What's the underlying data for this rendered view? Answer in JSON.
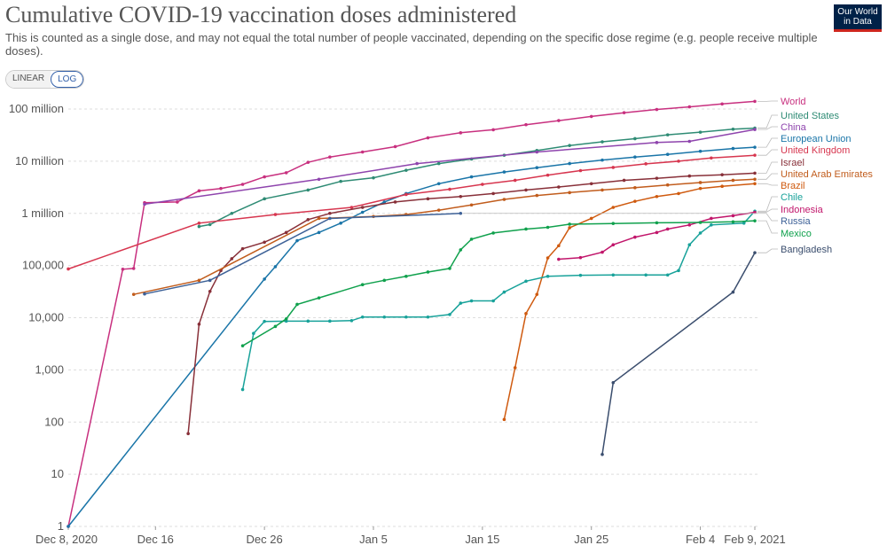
{
  "header": {
    "title": "Cumulative COVID-19 vaccination doses administered",
    "subtitle": "This is counted as a single dose, and may not equal the total number of people vaccinated, depending on the specific dose regime (e.g. people receive multiple doses).",
    "logo_line1": "Our World",
    "logo_line2": "in Data"
  },
  "scale_toggle": {
    "linear_label": "LINEAR",
    "log_label": "LOG",
    "selected": "LOG"
  },
  "chart_data": {
    "type": "line",
    "title": "Cumulative COVID-19 vaccination doses administered",
    "y_scale": "log",
    "ylim": [
      1,
      150000000
    ],
    "xlim": [
      "2020-12-08",
      "2021-02-09"
    ],
    "grid": true,
    "legend": "right end labels",
    "y_ticks": [
      {
        "value": 1,
        "label": "1"
      },
      {
        "value": 10,
        "label": "10"
      },
      {
        "value": 100,
        "label": "100"
      },
      {
        "value": 1000,
        "label": "1,000"
      },
      {
        "value": 10000,
        "label": "10,000"
      },
      {
        "value": 100000,
        "label": "100,000"
      },
      {
        "value": 1000000,
        "label": "1 million"
      },
      {
        "value": 10000000,
        "label": "10 million"
      },
      {
        "value": 100000000,
        "label": "100 million"
      }
    ],
    "x_ticks": [
      {
        "date": "2020-12-08",
        "label": "Dec 8, 2020"
      },
      {
        "date": "2020-12-16",
        "label": "Dec 16"
      },
      {
        "date": "2020-12-26",
        "label": "Dec 26"
      },
      {
        "date": "2021-01-05",
        "label": "Jan 5"
      },
      {
        "date": "2021-01-15",
        "label": "Jan 15"
      },
      {
        "date": "2021-01-25",
        "label": "Jan 25"
      },
      {
        "date": "2021-02-04",
        "label": "Feb 4"
      },
      {
        "date": "2021-02-09",
        "label": "Feb 9, 2021"
      }
    ],
    "series": [
      {
        "name": "World",
        "color": "#c8307f",
        "points": [
          [
            "2020-12-08",
            1
          ],
          [
            "2020-12-13",
            85000
          ],
          [
            "2020-12-14",
            88000
          ],
          [
            "2020-12-15",
            1600000
          ],
          [
            "2020-12-18",
            1650000
          ],
          [
            "2020-12-20",
            2700000
          ],
          [
            "2020-12-22",
            3000000
          ],
          [
            "2020-12-24",
            3600000
          ],
          [
            "2020-12-26",
            5000000
          ],
          [
            "2020-12-28",
            6000000
          ],
          [
            "2020-12-30",
            9500000
          ],
          [
            "2021-01-01",
            12000000
          ],
          [
            "2021-01-04",
            15000000
          ],
          [
            "2021-01-07",
            19000000
          ],
          [
            "2021-01-10",
            28000000
          ],
          [
            "2021-01-13",
            35000000
          ],
          [
            "2021-01-16",
            40000000
          ],
          [
            "2021-01-19",
            50000000
          ],
          [
            "2021-01-22",
            60000000
          ],
          [
            "2021-01-25",
            72000000
          ],
          [
            "2021-01-28",
            85000000
          ],
          [
            "2021-01-31",
            98000000
          ],
          [
            "2021-02-03",
            110000000
          ],
          [
            "2021-02-06",
            125000000
          ],
          [
            "2021-02-09",
            140000000
          ]
        ]
      },
      {
        "name": "United States",
        "color": "#2e8b74",
        "points": [
          [
            "2020-12-20",
            560000
          ],
          [
            "2020-12-21",
            610000
          ],
          [
            "2020-12-23",
            1000000
          ],
          [
            "2020-12-26",
            1900000
          ],
          [
            "2020-12-30",
            2800000
          ],
          [
            "2021-01-02",
            4100000
          ],
          [
            "2021-01-05",
            4800000
          ],
          [
            "2021-01-08",
            6700000
          ],
          [
            "2021-01-11",
            9000000
          ],
          [
            "2021-01-14",
            11000000
          ],
          [
            "2021-01-17",
            13000000
          ],
          [
            "2021-01-20",
            16000000
          ],
          [
            "2021-01-23",
            20000000
          ],
          [
            "2021-01-26",
            23500000
          ],
          [
            "2021-01-29",
            27000000
          ],
          [
            "2021-02-01",
            32000000
          ],
          [
            "2021-02-04",
            36000000
          ],
          [
            "2021-02-07",
            41000000
          ],
          [
            "2021-02-09",
            43000000
          ]
        ]
      },
      {
        "name": "China",
        "color": "#8e44ad",
        "points": [
          [
            "2020-12-15",
            1500000
          ],
          [
            "2020-12-31",
            4500000
          ],
          [
            "2021-01-09",
            9000000
          ],
          [
            "2021-01-20",
            15000000
          ],
          [
            "2021-01-31",
            22770000
          ],
          [
            "2021-02-03",
            24000000
          ],
          [
            "2021-02-09",
            40520000
          ]
        ]
      },
      {
        "name": "European Union",
        "color": "#1a75a8",
        "points": [
          [
            "2020-12-08",
            1
          ],
          [
            "2020-12-26",
            55000
          ],
          [
            "2020-12-27",
            95000
          ],
          [
            "2020-12-29",
            300000
          ],
          [
            "2020-12-31",
            430000
          ],
          [
            "2021-01-02",
            650000
          ],
          [
            "2021-01-04",
            1050000
          ],
          [
            "2021-01-06",
            1650000
          ],
          [
            "2021-01-08",
            2400000
          ],
          [
            "2021-01-11",
            3700000
          ],
          [
            "2021-01-14",
            5000000
          ],
          [
            "2021-01-17",
            6200000
          ],
          [
            "2021-01-20",
            7500000
          ],
          [
            "2021-01-23",
            9000000
          ],
          [
            "2021-01-26",
            10500000
          ],
          [
            "2021-01-29",
            12000000
          ],
          [
            "2021-02-01",
            13500000
          ],
          [
            "2021-02-04",
            15500000
          ],
          [
            "2021-02-07",
            17500000
          ],
          [
            "2021-02-09",
            18500000
          ]
        ]
      },
      {
        "name": "United Kingdom",
        "color": "#d7364f",
        "points": [
          [
            "2020-12-08",
            86000
          ],
          [
            "2020-12-20",
            650000
          ],
          [
            "2020-12-27",
            950000
          ],
          [
            "2021-01-03",
            1300000
          ],
          [
            "2021-01-08",
            2300000
          ],
          [
            "2021-01-12",
            2900000
          ],
          [
            "2021-01-15",
            3600000
          ],
          [
            "2021-01-18",
            4300000
          ],
          [
            "2021-01-21",
            5400000
          ],
          [
            "2021-01-24",
            6600000
          ],
          [
            "2021-01-27",
            7600000
          ],
          [
            "2021-01-30",
            8900000
          ],
          [
            "2021-02-02",
            10000000
          ],
          [
            "2021-02-05",
            11500000
          ],
          [
            "2021-02-09",
            13000000
          ]
        ]
      },
      {
        "name": "Israel",
        "color": "#883039",
        "points": [
          [
            "2020-12-19",
            60
          ],
          [
            "2020-12-20",
            7500
          ],
          [
            "2020-12-21",
            32000
          ],
          [
            "2020-12-22",
            80000
          ],
          [
            "2020-12-23",
            135000
          ],
          [
            "2020-12-24",
            210000
          ],
          [
            "2020-12-26",
            280000
          ],
          [
            "2020-12-28",
            430000
          ],
          [
            "2020-12-30",
            760000
          ],
          [
            "2021-01-01",
            1000000
          ],
          [
            "2021-01-04",
            1300000
          ],
          [
            "2021-01-07",
            1650000
          ],
          [
            "2021-01-10",
            1900000
          ],
          [
            "2021-01-13",
            2100000
          ],
          [
            "2021-01-16",
            2400000
          ],
          [
            "2021-01-19",
            2800000
          ],
          [
            "2021-01-22",
            3200000
          ],
          [
            "2021-01-25",
            3700000
          ],
          [
            "2021-01-28",
            4300000
          ],
          [
            "2021-01-31",
            4700000
          ],
          [
            "2021-02-03",
            5200000
          ],
          [
            "2021-02-06",
            5500000
          ],
          [
            "2021-02-09",
            5900000
          ]
        ]
      },
      {
        "name": "United Arab Emirates",
        "color": "#c15c1c",
        "points": [
          [
            "2020-12-14",
            28000
          ],
          [
            "2020-12-20",
            52000
          ],
          [
            "2020-12-31",
            800000
          ],
          [
            "2021-01-05",
            870000
          ],
          [
            "2021-01-08",
            950000
          ],
          [
            "2021-01-11",
            1150000
          ],
          [
            "2021-01-14",
            1450000
          ],
          [
            "2021-01-17",
            1850000
          ],
          [
            "2021-01-20",
            2200000
          ],
          [
            "2021-01-23",
            2500000
          ],
          [
            "2021-01-26",
            2800000
          ],
          [
            "2021-01-29",
            3100000
          ],
          [
            "2021-02-01",
            3500000
          ],
          [
            "2021-02-04",
            3900000
          ],
          [
            "2021-02-07",
            4300000
          ],
          [
            "2021-02-09",
            4500000
          ]
        ]
      },
      {
        "name": "Brazil",
        "color": "#cf5a0f",
        "points": [
          [
            "2021-01-17",
            112
          ],
          [
            "2021-01-18",
            1100
          ],
          [
            "2021-01-19",
            12000
          ],
          [
            "2021-01-20",
            28000
          ],
          [
            "2021-01-21",
            140000
          ],
          [
            "2021-01-22",
            240000
          ],
          [
            "2021-01-23",
            530000
          ],
          [
            "2021-01-25",
            800000
          ],
          [
            "2021-01-27",
            1300000
          ],
          [
            "2021-01-29",
            1700000
          ],
          [
            "2021-01-31",
            2100000
          ],
          [
            "2021-02-02",
            2400000
          ],
          [
            "2021-02-04",
            3000000
          ],
          [
            "2021-02-06",
            3300000
          ],
          [
            "2021-02-09",
            3700000
          ]
        ]
      },
      {
        "name": "Chile",
        "color": "#18a29a",
        "points": [
          [
            "2020-12-24",
            420
          ],
          [
            "2020-12-25",
            5000
          ],
          [
            "2020-12-26",
            8500
          ],
          [
            "2020-12-28",
            8600
          ],
          [
            "2020-12-30",
            8600
          ],
          [
            "2021-01-01",
            8600
          ],
          [
            "2021-01-03",
            8800
          ],
          [
            "2021-01-04",
            10300
          ],
          [
            "2021-01-06",
            10300
          ],
          [
            "2021-01-08",
            10300
          ],
          [
            "2021-01-10",
            10300
          ],
          [
            "2021-01-12",
            11500
          ],
          [
            "2021-01-13",
            19000
          ],
          [
            "2021-01-14",
            21000
          ],
          [
            "2021-01-16",
            21000
          ],
          [
            "2021-01-17",
            31000
          ],
          [
            "2021-01-19",
            50000
          ],
          [
            "2021-01-21",
            62000
          ],
          [
            "2021-01-24",
            65000
          ],
          [
            "2021-01-27",
            66000
          ],
          [
            "2021-01-30",
            66000
          ],
          [
            "2021-02-01",
            66000
          ],
          [
            "2021-02-02",
            80000
          ],
          [
            "2021-02-03",
            250000
          ],
          [
            "2021-02-04",
            420000
          ],
          [
            "2021-02-05",
            600000
          ],
          [
            "2021-02-08",
            650000
          ],
          [
            "2021-02-09",
            1100000
          ]
        ]
      },
      {
        "name": "Indonesia",
        "color": "#c1166b",
        "points": [
          [
            "2021-01-22",
            132000
          ],
          [
            "2021-01-24",
            142000
          ],
          [
            "2021-01-26",
            180000
          ],
          [
            "2021-01-27",
            250000
          ],
          [
            "2021-01-29",
            350000
          ],
          [
            "2021-01-31",
            430000
          ],
          [
            "2021-02-01",
            500000
          ],
          [
            "2021-02-03",
            600000
          ],
          [
            "2021-02-05",
            800000
          ],
          [
            "2021-02-07",
            900000
          ],
          [
            "2021-02-09",
            1050000
          ]
        ]
      },
      {
        "name": "Russia",
        "color": "#3d6197",
        "points": [
          [
            "2020-12-15",
            28500
          ],
          [
            "2020-12-21",
            52000
          ],
          [
            "2021-01-01",
            800000
          ],
          [
            "2021-01-13",
            1000000
          ]
        ]
      },
      {
        "name": "Mexico",
        "color": "#10a14d",
        "points": [
          [
            "2020-12-24",
            2900
          ],
          [
            "2020-12-27",
            6800
          ],
          [
            "2020-12-28",
            9500
          ],
          [
            "2020-12-29",
            18000
          ],
          [
            "2020-12-31",
            24000
          ],
          [
            "2021-01-04",
            43000
          ],
          [
            "2021-01-06",
            52000
          ],
          [
            "2021-01-08",
            62000
          ],
          [
            "2021-01-10",
            75000
          ],
          [
            "2021-01-12",
            88000
          ],
          [
            "2021-01-13",
            200000
          ],
          [
            "2021-01-14",
            320000
          ],
          [
            "2021-01-16",
            420000
          ],
          [
            "2021-01-19",
            500000
          ],
          [
            "2021-01-21",
            540000
          ],
          [
            "2021-01-23",
            620000
          ],
          [
            "2021-01-27",
            640000
          ],
          [
            "2021-01-31",
            660000
          ],
          [
            "2021-02-04",
            670000
          ],
          [
            "2021-02-07",
            690000
          ],
          [
            "2021-02-09",
            720000
          ]
        ]
      },
      {
        "name": "Bangladesh",
        "color": "#3b4e6e",
        "points": [
          [
            "2021-01-26",
            24
          ],
          [
            "2021-01-27",
            570
          ],
          [
            "2021-02-07",
            31000
          ],
          [
            "2021-02-09",
            176000
          ]
        ]
      }
    ],
    "end_labels": [
      "World",
      "United States",
      "China",
      "European Union",
      "United Kingdom",
      "Israel",
      "United Arab Emirates",
      "Brazil",
      "Chile",
      "Indonesia",
      "Russia",
      "Mexico",
      "Bangladesh"
    ]
  }
}
